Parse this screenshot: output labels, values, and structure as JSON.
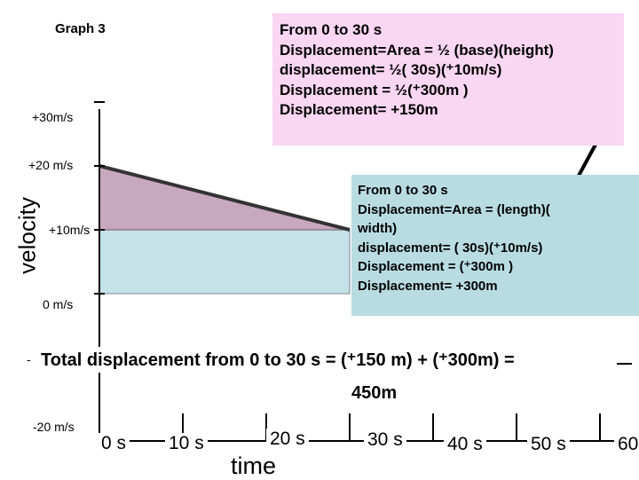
{
  "graph_title": "Graph 3",
  "y_axis": {
    "title": "velocity",
    "ticks": [
      "+30m/s",
      "+20 m/s",
      "+10m/s",
      "0 m/s",
      "-",
      "-20 m/s"
    ]
  },
  "x_axis": {
    "title": "time",
    "ticks": [
      "0 s",
      "10 s",
      "20 s",
      "30 s",
      "40 s",
      "50 s",
      "60"
    ]
  },
  "triangle_box": {
    "lines": [
      "From  0 to 30 s",
      "Displacement=Area = ½ (base)(height)",
      "displacement= ½( 30s)(⁺10m/s)",
      "Displacement = ½(⁺300m )",
      "Displacement= +150m"
    ]
  },
  "rectangle_box": {
    "lines": [
      "From 0 to 30 s",
      "Displacement=Area = (length)(",
      "width)",
      "displacement= ( 30s)(⁺10m/s)",
      "Displacement =  (⁺300m )",
      "Displacement= +300m"
    ]
  },
  "total": {
    "line1": "Total displacement from 0 to 30 s = (⁺150 m) + (⁺300m) =",
    "line2": "450m"
  },
  "chart_data": {
    "type": "area",
    "title": "Graph 3",
    "xlabel": "time",
    "ylabel": "velocity",
    "x": [
      0,
      30
    ],
    "series": [
      {
        "values": [
          20,
          10
        ]
      }
    ],
    "regions": [
      {
        "shape": "triangle",
        "from_x": 0,
        "to_x": 30,
        "y_bottom": 10,
        "y_top_start": 20,
        "y_top_end": 10,
        "color": "#c8a8bf"
      },
      {
        "shape": "rectangle",
        "from_x": 0,
        "to_x": 30,
        "y_bottom": 0,
        "y_top": 10,
        "color": "#c4e2e8"
      }
    ],
    "xlim": [
      0,
      60
    ],
    "ylim": [
      -20,
      30
    ],
    "grid": false,
    "colors": {
      "triangle": "#c8a8bf",
      "rectangle": "#c4e2e8",
      "pink_box": "#f9d6f1",
      "cyan_box": "#b8dce2"
    }
  }
}
